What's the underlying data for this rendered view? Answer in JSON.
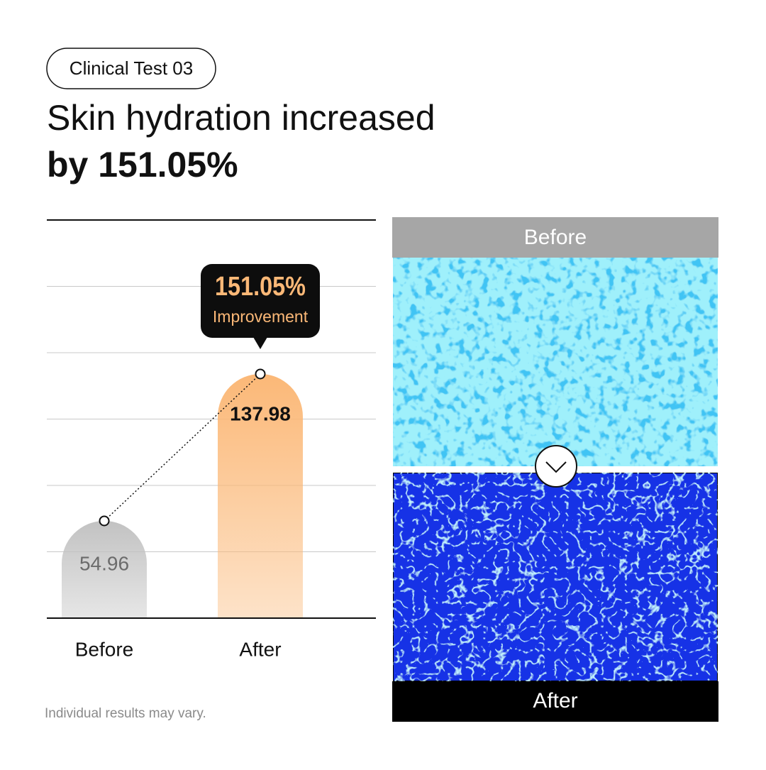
{
  "tag": "Clinical Test 03",
  "chart_data": {
    "type": "bar",
    "title": "Skin hydration increased",
    "subtitle": "by 151.05%",
    "categories": [
      "Before",
      "After"
    ],
    "values": [
      54.96,
      137.98
    ],
    "colors": [
      "#c2c2c2",
      "#fbb877"
    ],
    "ylim": [
      0,
      225
    ],
    "grid": true,
    "annotation": {
      "value": "151.05%",
      "label": "Improvement"
    }
  },
  "images": {
    "before": "Before",
    "after": "After"
  },
  "footnote": "Individual results may vary."
}
